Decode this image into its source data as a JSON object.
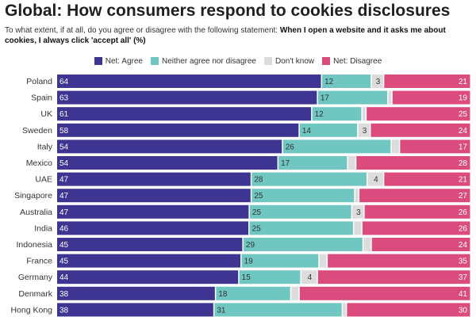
{
  "title": "Global: How consumers respond to cookies disclosures",
  "subtitle": {
    "prefix": "To what extent, if at all, do you agree or disagree with the following statement: ",
    "statement": "When I open a website and it asks me about cookies, I always click 'accept all' (%)"
  },
  "legend": [
    {
      "label": "Net: Agree",
      "color": "#3d3591"
    },
    {
      "label": "Neither agree nor disagree",
      "color": "#70c6c1"
    },
    {
      "label": "Don't know",
      "color": "#dcdcdc"
    },
    {
      "label": "Net: Disagree",
      "color": "#db4b7e"
    }
  ],
  "chart_data": {
    "type": "bar",
    "orientation": "horizontal",
    "stacked": true,
    "stack_to": 100,
    "title": "Global: How consumers respond to cookies disclosures",
    "categories": [
      "Poland",
      "Spain",
      "UK",
      "Sweden",
      "Italy",
      "Mexico",
      "UAE",
      "Singapore",
      "Australia",
      "India",
      "Indonesia",
      "France",
      "Germany",
      "Denmark",
      "Hong Kong"
    ],
    "series": [
      {
        "name": "Net: Agree",
        "color": "#3d3591",
        "label_color": "#ffffff",
        "values": [
          64,
          63,
          61,
          58,
          54,
          54,
          47,
          47,
          47,
          46,
          45,
          45,
          44,
          38,
          38
        ],
        "labels": [
          "64",
          "63",
          "61",
          "58",
          "54",
          "54",
          "47",
          "47",
          "47",
          "46",
          "45",
          "45",
          "44",
          "38",
          "38"
        ]
      },
      {
        "name": "Neither agree nor disagree",
        "color": "#70c6c1",
        "label_color": "#333333",
        "values": [
          12,
          17,
          12,
          14,
          26,
          17,
          28,
          25,
          25,
          25,
          29,
          19,
          15,
          18,
          31
        ],
        "labels": [
          "12",
          "17",
          "12",
          "14",
          "26",
          "17",
          "28",
          "25",
          "25",
          "25",
          "29",
          "19",
          "15",
          "18",
          "31"
        ]
      },
      {
        "name": "Don't know",
        "color": "#dcdcdc",
        "label_color": "#333333",
        "values": [
          3,
          1,
          1,
          3,
          2,
          2,
          4,
          1,
          3,
          2,
          2,
          2,
          4,
          2,
          1
        ],
        "labels": [
          "3",
          "",
          "",
          "3",
          "",
          "",
          "4",
          "",
          "3",
          "",
          "",
          "",
          "4",
          "",
          ""
        ]
      },
      {
        "name": "Net: Disagree",
        "color": "#db4b7e",
        "label_color": "#ffffff",
        "values": [
          21,
          19,
          25,
          24,
          17,
          28,
          21,
          27,
          26,
          26,
          24,
          35,
          37,
          41,
          30
        ],
        "labels": [
          "21",
          "19",
          "25",
          "24",
          "17",
          "28",
          "21",
          "27",
          "26",
          "26",
          "24",
          "35",
          "37",
          "41",
          "30"
        ]
      }
    ],
    "xlim": [
      0,
      100
    ]
  }
}
